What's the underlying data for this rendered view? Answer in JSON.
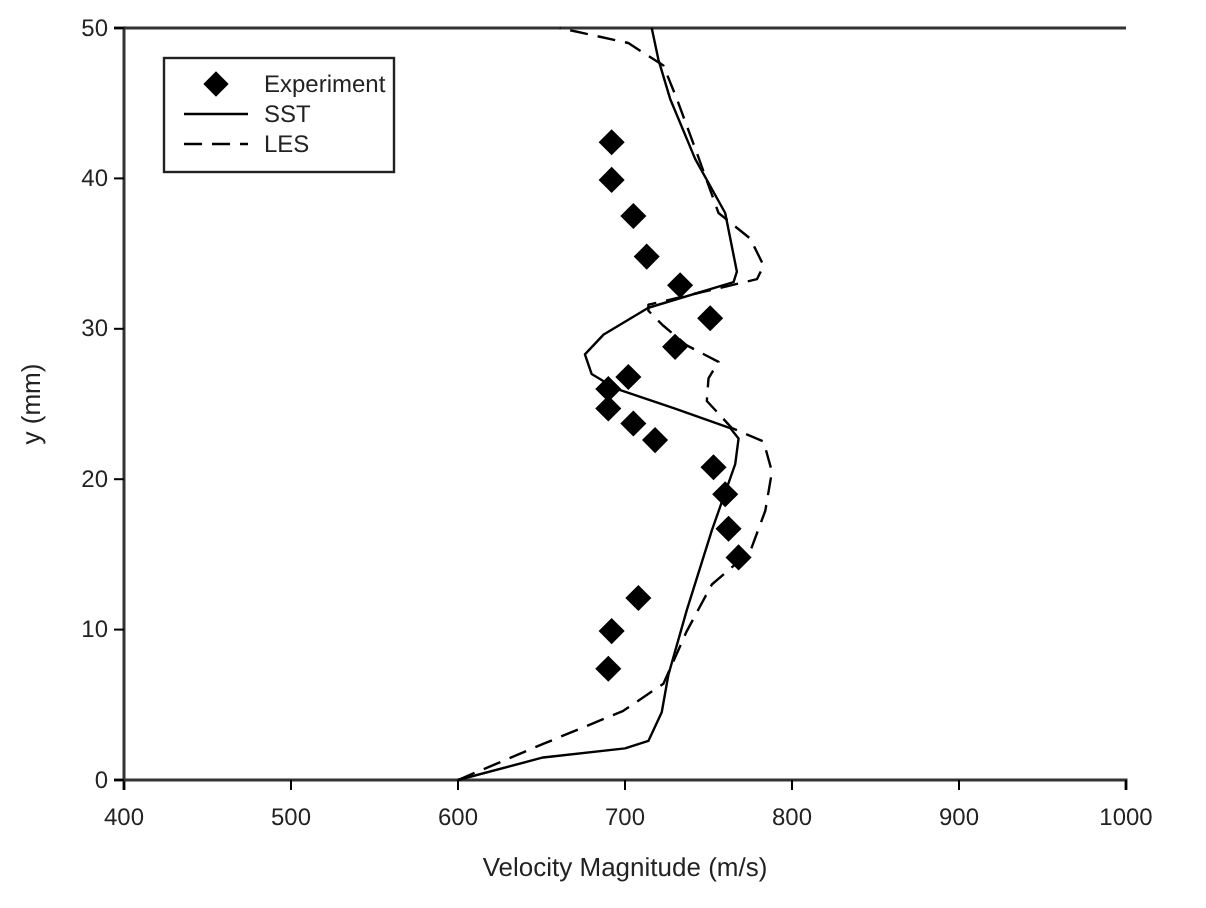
{
  "chart_data": {
    "type": "scatter",
    "xlabel": "Velocity Magnitude (m/s)",
    "ylabel": "y (mm)",
    "xlim": [
      400,
      1000
    ],
    "xticks": [
      400,
      500,
      600,
      700,
      800,
      900,
      1000
    ],
    "ylim": [
      0,
      50
    ],
    "yticks": [
      0,
      10,
      20,
      30,
      40,
      50
    ],
    "grid": false,
    "legend": "top left",
    "series": [
      {
        "name": "Experiment",
        "marker": "diamond",
        "color": "#000000",
        "x": [
          692,
          692,
          705,
          713,
          733,
          751,
          730,
          702,
          690,
          690,
          705,
          718,
          753,
          760,
          762,
          768,
          708,
          692,
          690
        ],
        "values": [
          42.4,
          39.9,
          37.5,
          34.8,
          32.9,
          30.7,
          28.8,
          26.8,
          26.0,
          24.7,
          23.7,
          22.6,
          20.8,
          19.0,
          16.7,
          14.8,
          12.1,
          9.9,
          7.4
        ]
      },
      {
        "name": "SST",
        "type": "line",
        "line_style": "solid",
        "color": "#000000",
        "x": [
          600,
          651,
          700,
          714,
          722,
          726,
          737,
          752,
          766,
          768,
          763,
          730,
          695,
          680,
          676,
          687,
          714,
          765,
          767,
          760,
          742,
          727,
          720,
          716
        ],
        "values": [
          0,
          1.5,
          2.1,
          2.6,
          4.5,
          7,
          11.3,
          16.6,
          21,
          22.7,
          23.4,
          24.7,
          26,
          27,
          28.3,
          29.6,
          31.4,
          33.1,
          33.8,
          37.7,
          41.3,
          45.3,
          47.9,
          50
        ]
      },
      {
        "name": "LES",
        "type": "line",
        "line_style": "dashed",
        "color": "#000000",
        "x": [
          600,
          651,
          699,
          723,
          737,
          752,
          775,
          784,
          788,
          783,
          764,
          749,
          750,
          756,
          737,
          723,
          714,
          714,
          779,
          783,
          775,
          756,
          743,
          731,
          723,
          702,
          661
        ],
        "values": [
          0,
          2.4,
          4.6,
          6.4,
          9.9,
          13,
          15.2,
          17.9,
          20.5,
          22.5,
          23.4,
          25.2,
          26.7,
          27.8,
          28.9,
          30.2,
          31.2,
          31.6,
          33.3,
          34.2,
          36,
          37.7,
          41.7,
          45.3,
          47.5,
          49,
          50
        ]
      }
    ]
  }
}
